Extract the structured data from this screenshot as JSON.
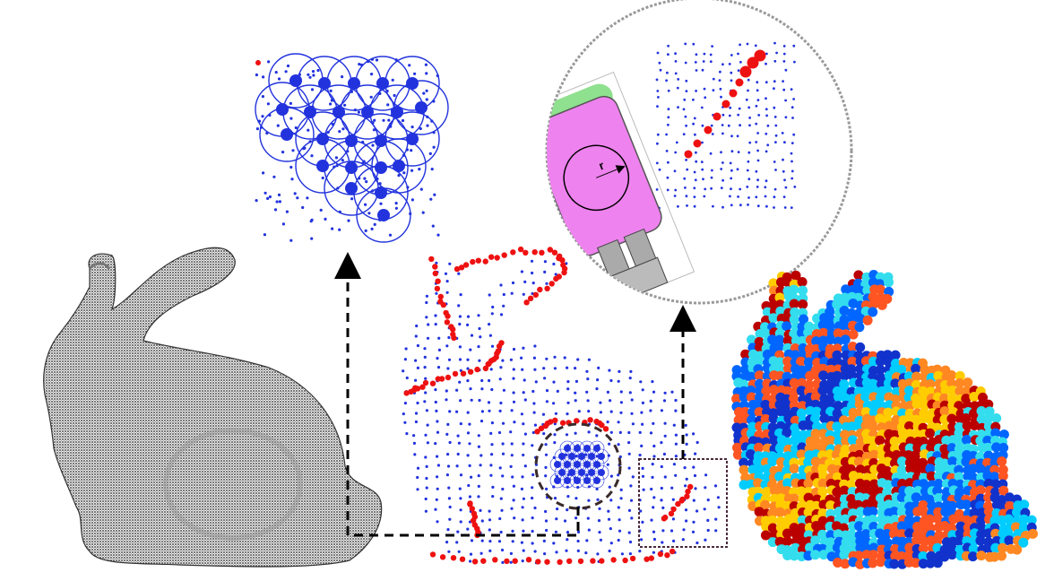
{
  "figure": {
    "panels": [
      {
        "id": "dense-point-cloud",
        "colors": {
          "points": "#111111"
        }
      },
      {
        "id": "sampled-bunny",
        "colors": {
          "surface_points": "#2233dd",
          "edge_points": "#ee1111"
        }
      },
      {
        "id": "zoom-disk-packing",
        "colors": {
          "circles": "#2233dd",
          "points": "#2233dd",
          "outliers": "#ee1111"
        }
      },
      {
        "id": "zoom-gripper-edge",
        "colors": {
          "gripper_body": "#ee82ee",
          "gripper_cap": "#8fe08f",
          "gripper_jaw": "#aaaaaa",
          "edge_points": "#ee1111",
          "surface_points": "#2233dd"
        }
      },
      {
        "id": "segmented-bunny",
        "colors": {
          "palette": [
            "#1133cc",
            "#00ccff",
            "#ff8822",
            "#ffcc00",
            "#bb0000",
            "#33ddee",
            "#0066ff",
            "#ff5522"
          ]
        }
      }
    ],
    "labels": {
      "radius": "r"
    },
    "arrows": [
      {
        "from": "sampled-bunny",
        "to": "zoom-disk-packing",
        "style": "dashed"
      },
      {
        "from": "sampled-bunny",
        "to": "zoom-gripper-edge",
        "style": "dashed"
      }
    ]
  }
}
